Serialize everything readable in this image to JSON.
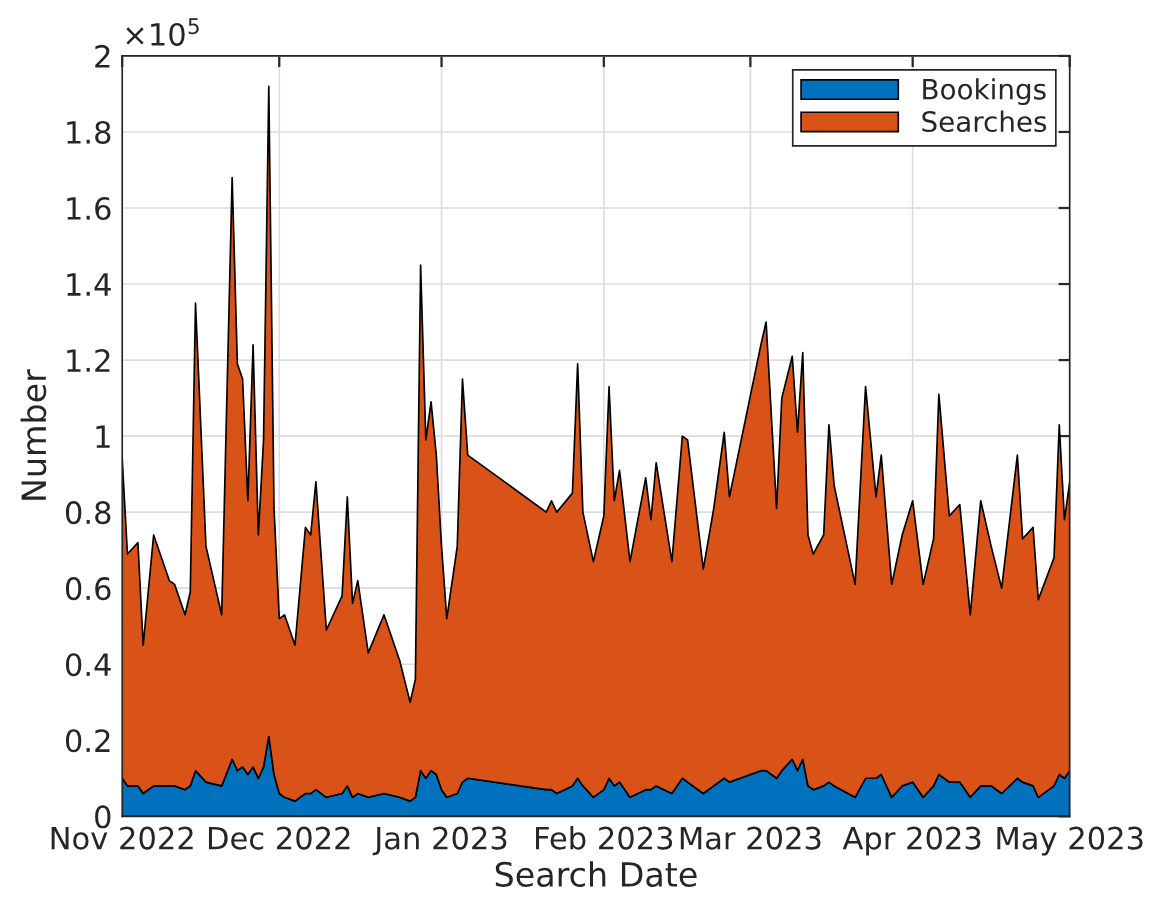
{
  "chart_data": {
    "type": "area",
    "stacked": true,
    "xlabel": "Search Date",
    "ylabel": "Number",
    "annotations": [
      "×10$^{5}$"
    ],
    "x": [
      "2022-11-01",
      "2022-11-02",
      "2022-11-04",
      "2022-11-05",
      "2022-11-07",
      "2022-11-10",
      "2022-11-11",
      "2022-11-13",
      "2022-11-14",
      "2022-11-15",
      "2022-11-17",
      "2022-11-20",
      "2022-11-22",
      "2022-11-23",
      "2022-11-24",
      "2022-11-25",
      "2022-11-26",
      "2022-11-27",
      "2022-11-28",
      "2022-11-29",
      "2022-11-30",
      "2022-12-01",
      "2022-12-02",
      "2022-12-04",
      "2022-12-06",
      "2022-12-07",
      "2022-12-08",
      "2022-12-10",
      "2022-12-13",
      "2022-12-14",
      "2022-12-15",
      "2022-12-16",
      "2022-12-18",
      "2022-12-21",
      "2022-12-24",
      "2022-12-26",
      "2022-12-27",
      "2022-12-28",
      "2022-12-29",
      "2022-12-30",
      "2022-12-31",
      "2023-01-01",
      "2023-01-02",
      "2023-01-04",
      "2023-01-05",
      "2023-01-06",
      "2023-01-21",
      "2023-01-22",
      "2023-01-23",
      "2023-01-26",
      "2023-01-27",
      "2023-01-28",
      "2023-01-30",
      "2023-02-01",
      "2023-02-02",
      "2023-02-03",
      "2023-02-04",
      "2023-02-06",
      "2023-02-09",
      "2023-02-10",
      "2023-02-11",
      "2023-02-14",
      "2023-02-16",
      "2023-02-17",
      "2023-02-20",
      "2023-02-22",
      "2023-02-24",
      "2023-02-25",
      "2023-03-03",
      "2023-03-04",
      "2023-03-06",
      "2023-03-07",
      "2023-03-09",
      "2023-03-10",
      "2023-03-11",
      "2023-03-12",
      "2023-03-13",
      "2023-03-15",
      "2023-03-16",
      "2023-03-17",
      "2023-03-21",
      "2023-03-23",
      "2023-03-25",
      "2023-03-26",
      "2023-03-28",
      "2023-03-30",
      "2023-04-01",
      "2023-04-03",
      "2023-04-05",
      "2023-04-06",
      "2023-04-08",
      "2023-04-10",
      "2023-04-12",
      "2023-04-14",
      "2023-04-16",
      "2023-04-18",
      "2023-04-21",
      "2023-04-22",
      "2023-04-24",
      "2023-04-25",
      "2023-04-28",
      "2023-04-29",
      "2023-04-30",
      "2023-05-01"
    ],
    "series": [
      {
        "name": "Bookings",
        "color": "#0072bd",
        "values": [
          0.1,
          0.08,
          0.08,
          0.06,
          0.08,
          0.08,
          0.08,
          0.07,
          0.08,
          0.12,
          0.09,
          0.08,
          0.15,
          0.12,
          0.13,
          0.11,
          0.13,
          0.1,
          0.13,
          0.21,
          0.11,
          0.06,
          0.05,
          0.04,
          0.06,
          0.06,
          0.07,
          0.05,
          0.06,
          0.08,
          0.05,
          0.06,
          0.05,
          0.06,
          0.05,
          0.04,
          0.05,
          0.12,
          0.1,
          0.12,
          0.11,
          0.07,
          0.05,
          0.06,
          0.09,
          0.1,
          0.07,
          0.07,
          0.06,
          0.08,
          0.1,
          0.08,
          0.05,
          0.07,
          0.1,
          0.08,
          0.09,
          0.05,
          0.07,
          0.07,
          0.08,
          0.06,
          0.1,
          0.09,
          0.06,
          0.08,
          0.1,
          0.09,
          0.12,
          0.12,
          0.1,
          0.12,
          0.15,
          0.12,
          0.15,
          0.08,
          0.07,
          0.08,
          0.09,
          0.08,
          0.05,
          0.1,
          0.1,
          0.11,
          0.05,
          0.08,
          0.09,
          0.05,
          0.08,
          0.11,
          0.09,
          0.09,
          0.05,
          0.08,
          0.08,
          0.06,
          0.1,
          0.09,
          0.08,
          0.05,
          0.08,
          0.11,
          0.1,
          0.12
        ]
      },
      {
        "name": "Searches",
        "color": "#d95319",
        "values": [
          0.84,
          0.61,
          0.64,
          0.39,
          0.66,
          0.54,
          0.53,
          0.46,
          0.51,
          1.23,
          0.62,
          0.45,
          1.53,
          1.07,
          1.02,
          0.72,
          1.11,
          0.64,
          0.86,
          1.71,
          0.7,
          0.46,
          0.48,
          0.41,
          0.7,
          0.68,
          0.81,
          0.44,
          0.52,
          0.76,
          0.51,
          0.56,
          0.38,
          0.47,
          0.36,
          0.26,
          0.31,
          1.33,
          0.89,
          0.97,
          0.84,
          0.64,
          0.47,
          0.65,
          1.06,
          0.85,
          0.73,
          0.76,
          0.74,
          0.77,
          1.09,
          0.72,
          0.62,
          0.72,
          1.03,
          0.75,
          0.82,
          0.62,
          0.82,
          0.71,
          0.85,
          0.61,
          0.9,
          0.9,
          0.59,
          0.73,
          0.91,
          0.75,
          1.12,
          1.18,
          0.71,
          0.98,
          1.06,
          0.89,
          1.07,
          0.66,
          0.62,
          0.66,
          0.94,
          0.79,
          0.56,
          1.03,
          0.74,
          0.84,
          0.56,
          0.66,
          0.74,
          0.56,
          0.65,
          1.0,
          0.7,
          0.73,
          0.48,
          0.75,
          0.63,
          0.54,
          0.85,
          0.64,
          0.68,
          0.52,
          0.6,
          0.92,
          0.68,
          0.76
        ]
      }
    ],
    "xlim": [
      "2022-11-01",
      "2023-05-01"
    ],
    "xticks": [
      {
        "value": "2022-11-01",
        "label": "Nov 2022"
      },
      {
        "value": "2022-12-01",
        "label": "Dec 2022"
      },
      {
        "value": "2023-01-01",
        "label": "Jan 2023"
      },
      {
        "value": "2023-02-01",
        "label": "Feb 2023"
      },
      {
        "value": "2023-03-01",
        "label": "Mar 2023"
      },
      {
        "value": "2023-04-01",
        "label": "Apr 2023"
      },
      {
        "value": "2023-05-01",
        "label": "May 2023"
      }
    ],
    "ylim": [
      0,
      2
    ],
    "yticks": [
      0,
      0.2,
      0.4,
      0.6,
      0.8,
      1,
      1.2,
      1.4,
      1.6,
      1.8,
      2
    ],
    "grid": true,
    "legend": "top right"
  }
}
